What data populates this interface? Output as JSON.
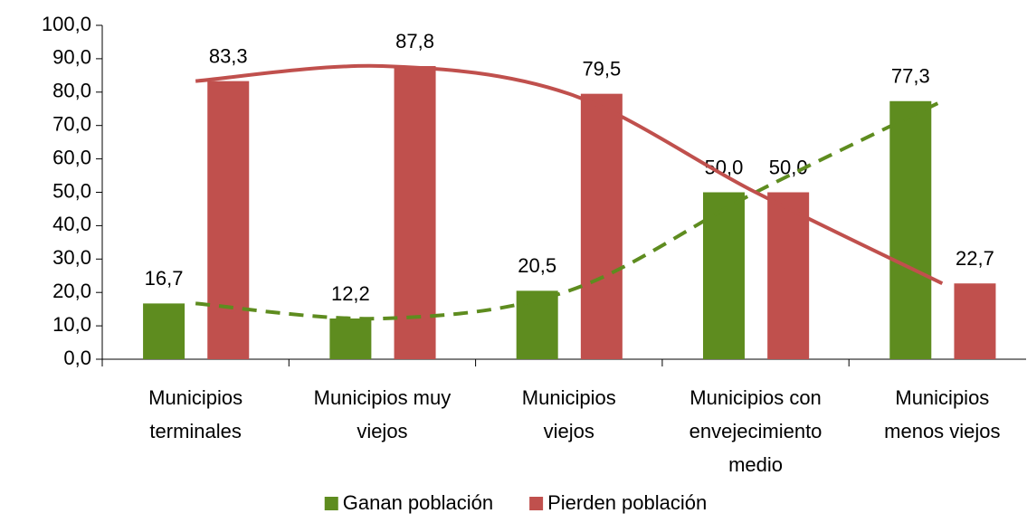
{
  "chart_data": {
    "type": "bar",
    "categories": [
      "Municipios terminales",
      "Municipios muy viejos",
      "Municipios viejos",
      "Municipios con envejecimiento medio",
      "Municipios menos viejos"
    ],
    "series": [
      {
        "name": "Ganan población",
        "color": "#5e8c1f",
        "trendline": "dashed",
        "values": [
          16.7,
          12.2,
          20.5,
          50,
          77.3
        ],
        "value_labels": [
          "16,7",
          "12,2",
          "20,5",
          "50,0",
          "77,3"
        ]
      },
      {
        "name": "Pierden población",
        "color": "#c0504d",
        "trendline": "solid",
        "values": [
          83.3,
          87.8,
          79.5,
          50,
          22.7
        ],
        "value_labels": [
          "83,3",
          "87,8",
          "79,5",
          "50,0",
          "22,7"
        ]
      }
    ],
    "ylim": [
      0,
      100
    ],
    "yticks": [
      {
        "value": 0,
        "label": "0,0"
      },
      {
        "value": 10,
        "label": "10,0"
      },
      {
        "value": 20,
        "label": "20,0"
      },
      {
        "value": 30,
        "label": "30,0"
      },
      {
        "value": 40,
        "label": "40,0"
      },
      {
        "value": 50,
        "label": "50,0"
      },
      {
        "value": 60,
        "label": "60,0"
      },
      {
        "value": 70,
        "label": "70,0"
      },
      {
        "value": 80,
        "label": "80,0"
      },
      {
        "value": 90,
        "label": "90,0"
      },
      {
        "value": 100,
        "label": "100,0"
      }
    ],
    "legend": "bottom",
    "grid": false
  }
}
